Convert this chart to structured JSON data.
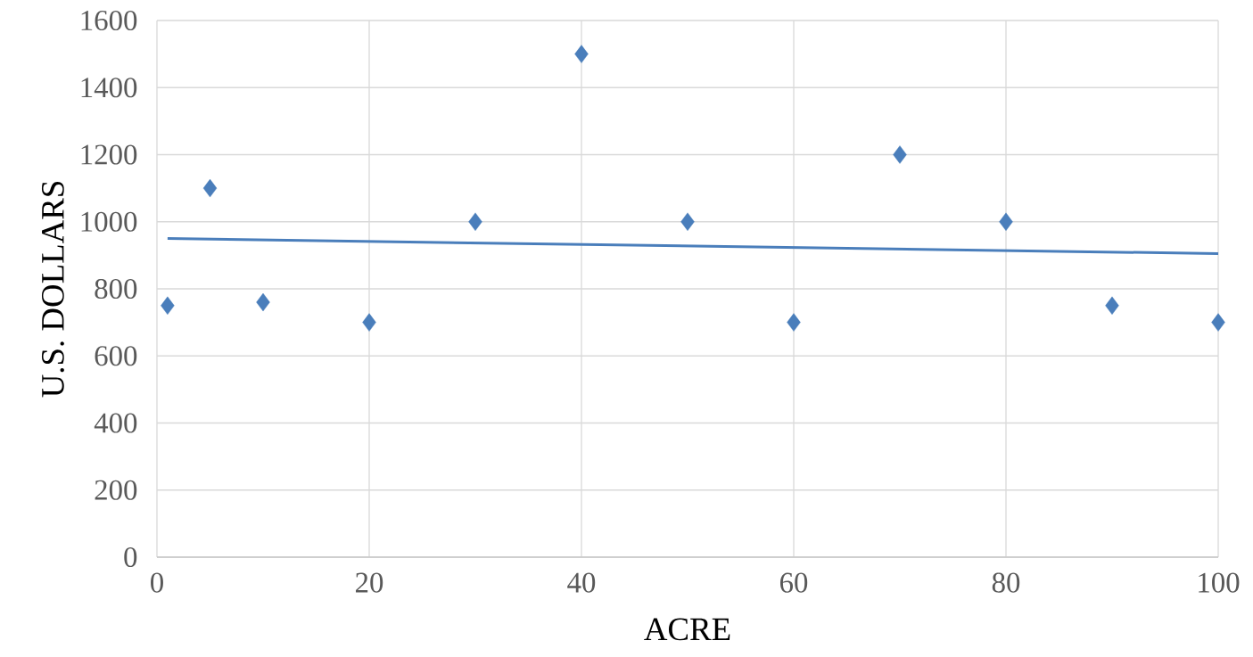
{
  "chart_data": {
    "type": "scatter",
    "xlabel": "ACRE",
    "ylabel": "U.S. DOLLARS",
    "xlim": [
      0,
      100
    ],
    "ylim": [
      0,
      1600
    ],
    "xticks": [
      0,
      20,
      40,
      60,
      80,
      100
    ],
    "yticks": [
      0,
      200,
      400,
      600,
      800,
      1000,
      1200,
      1400,
      1600
    ],
    "grid": true,
    "marker": "diamond",
    "series": [
      {
        "color": "#4a7ebb",
        "x": [
          1,
          5,
          10,
          20,
          30,
          40,
          50,
          60,
          70,
          80,
          90,
          100
        ],
        "values": [
          750,
          1100,
          760,
          700,
          1000,
          1500,
          1000,
          700,
          1200,
          1000,
          750,
          700
        ]
      },
      {
        "type": "line",
        "color": "#4a7ebb",
        "marker": "none",
        "x": [
          1,
          100
        ],
        "values": [
          950,
          905
        ]
      }
    ]
  }
}
